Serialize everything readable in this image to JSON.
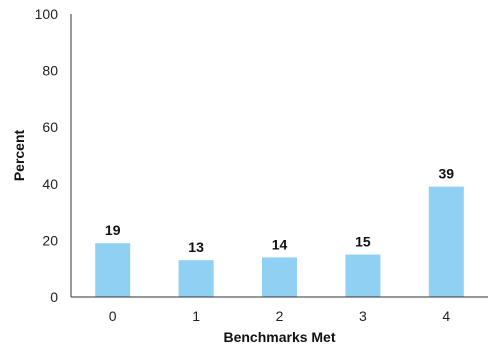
{
  "chart_data": {
    "type": "bar",
    "categories": [
      "0",
      "1",
      "2",
      "3",
      "4"
    ],
    "values": [
      19,
      13,
      14,
      15,
      39
    ],
    "data_labels": [
      "19",
      "13",
      "14",
      "15",
      "39"
    ],
    "xlabel": "Benchmarks Met",
    "ylabel": "Percent",
    "ylim": [
      0,
      100
    ],
    "yticks": [
      "0",
      "20",
      "40",
      "60",
      "80",
      "100"
    ],
    "grid": false,
    "bar_color": "#8fd0f3"
  }
}
